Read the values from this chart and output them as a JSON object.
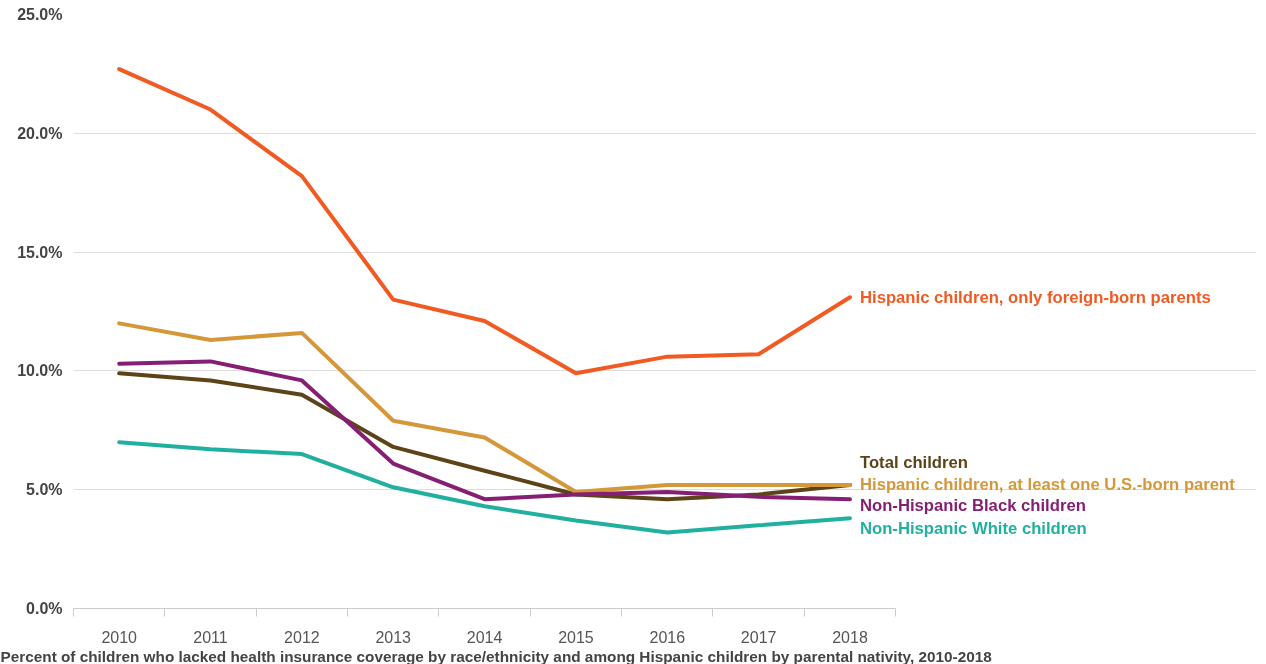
{
  "chart_data": {
    "type": "line",
    "title": "Percent of children who lacked health insurance coverage by race/ethnicity and among Hispanic children by parental nativity, 2010-2018",
    "categories": [
      "2010",
      "2011",
      "2012",
      "2013",
      "2014",
      "2015",
      "2016",
      "2017",
      "2018"
    ],
    "series": [
      {
        "name": "Hispanic children, only foreign-born parents",
        "color": "#f15a22",
        "values": [
          22.7,
          21.0,
          18.2,
          13.0,
          12.1,
          9.9,
          10.6,
          10.7,
          13.1
        ]
      },
      {
        "name": "Total children",
        "color": "#5c4418",
        "values": [
          9.9,
          9.6,
          9.0,
          6.8,
          5.8,
          4.8,
          4.6,
          4.8,
          5.2
        ]
      },
      {
        "name": "Hispanic children, at least one U.S.-born parent",
        "color": "#d4973a",
        "values": [
          12.0,
          11.3,
          11.6,
          7.9,
          7.2,
          4.9,
          5.2,
          5.2,
          5.2
        ]
      },
      {
        "name": "Non-Hispanic Black children",
        "color": "#851f73",
        "values": [
          10.3,
          10.4,
          9.6,
          6.1,
          4.6,
          4.8,
          4.9,
          4.7,
          4.6
        ]
      },
      {
        "name": "Non-Hispanic White children",
        "color": "#21b0a0",
        "values": [
          7.0,
          6.7,
          6.5,
          5.1,
          4.3,
          3.7,
          3.2,
          3.5,
          3.8
        ]
      }
    ],
    "ylim": [
      0,
      25
    ],
    "yticks": [
      {
        "value": 0,
        "label": "0.0%"
      },
      {
        "value": 5,
        "label": "5.0%"
      },
      {
        "value": 10,
        "label": "10.0%"
      },
      {
        "value": 15,
        "label": "15.0%"
      },
      {
        "value": 20,
        "label": "20.0%"
      },
      {
        "value": 25,
        "label": "25.0%"
      }
    ],
    "grid": "y",
    "legend": false,
    "marker": "none",
    "line_style": "solid"
  }
}
